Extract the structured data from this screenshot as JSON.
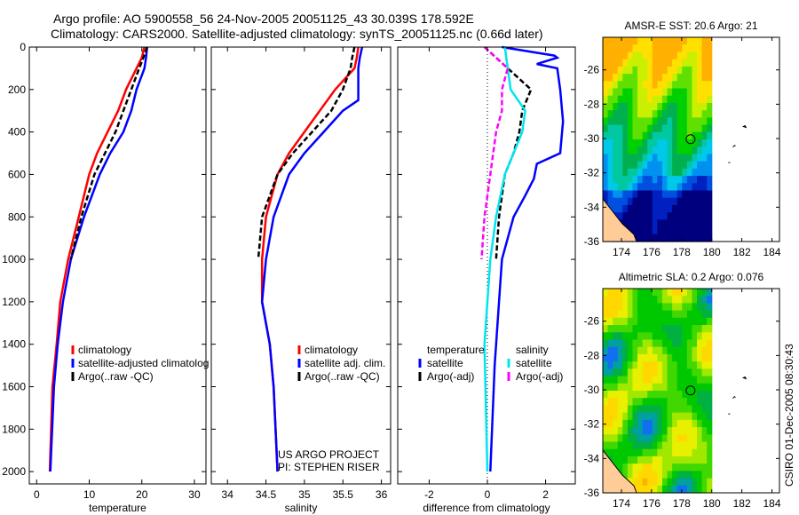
{
  "header": {
    "title_line1": "Argo profile: AO 5900558_56 24-Nov-2005 20051125_43 30.039S 178.592E",
    "title_line2": "Climatology: CARS2000. Satellite-adjusted climatology: synTS_20051125.nc (0.66d later)"
  },
  "side_stamp": "CSIRO 01-Dec-2005 08:30:43",
  "credits": {
    "line1": "US ARGO PROJECT",
    "line2": "PI: STEPHEN RISER"
  },
  "colors": {
    "climatology": "#ff0000",
    "satellite": "#0000ff",
    "argo": "#000000",
    "sal_satellite": "#00e5ee",
    "sal_argo": "#ff00ff"
  },
  "chart_data": [
    {
      "type": "line",
      "id": "temperature",
      "xlabel": "temperature",
      "ylabel": "",
      "xlim": [
        -1.4,
        32.2
      ],
      "ylim": [
        2058,
        0
      ],
      "xticks": [
        0,
        10,
        20,
        30
      ],
      "xtick_labels": [
        "0",
        "10",
        "20",
        "30"
      ],
      "yticks": [
        0,
        200,
        400,
        600,
        800,
        1000,
        1200,
        1400,
        1600,
        1800,
        2000
      ],
      "ytick_labels": [
        "0",
        "200",
        "400",
        "600",
        "800",
        "1000",
        "1200",
        "1400",
        "1600",
        "1800",
        "2000"
      ],
      "legend": [
        "climatology",
        "satellite-adjusted climatolog",
        "Argo(..raw -QC)"
      ],
      "legend_position": "lower-right",
      "series": [
        {
          "name": "climatology",
          "color": "#ff0000",
          "depth": [
            0,
            50,
            100,
            200,
            300,
            400,
            500,
            600,
            800,
            1000,
            1200,
            1400,
            1600,
            2000
          ],
          "values": [
            20.5,
            20,
            19,
            17,
            15.5,
            13.5,
            11.5,
            10,
            8,
            6,
            4.5,
            3.8,
            3,
            2.5
          ]
        },
        {
          "name": "satellite-adjusted climatology",
          "color": "#0000ff",
          "depth": [
            0,
            50,
            100,
            200,
            300,
            400,
            500,
            600,
            800,
            1000,
            1200,
            1400,
            1600,
            2000
          ],
          "values": [
            21,
            20.8,
            20.5,
            19,
            18,
            16.5,
            14,
            12,
            9,
            6.5,
            5,
            4,
            3.3,
            2.6
          ]
        },
        {
          "name": "Argo(..raw -QC)",
          "color": "#000000",
          "dashed": true,
          "depth": [
            0,
            50,
            100,
            200,
            300,
            400,
            500,
            600,
            800,
            1000
          ],
          "values": [
            21,
            20.3,
            19.5,
            18,
            16.5,
            15,
            13,
            11,
            8.5,
            6.5
          ]
        }
      ]
    },
    {
      "type": "line",
      "id": "salinity",
      "xlabel": "salinity",
      "xlim": [
        33.79,
        36.12
      ],
      "ylim": [
        2058,
        0
      ],
      "xticks": [
        34,
        34.5,
        35,
        35.5,
        36
      ],
      "xtick_labels": [
        "34",
        "34.5",
        "35",
        "35.5",
        "36"
      ],
      "legend": [
        "climatology",
        "satellite adj. clim.",
        "Argo(..raw -QC)"
      ],
      "legend_position": "lower-right",
      "series": [
        {
          "name": "climatology",
          "color": "#ff0000",
          "depth": [
            0,
            50,
            100,
            200,
            300,
            400,
            500,
            600,
            800,
            1000,
            1200,
            1400,
            1600,
            2000
          ],
          "values": [
            35.7,
            35.68,
            35.65,
            35.4,
            35.2,
            35.0,
            34.8,
            34.65,
            34.5,
            34.45,
            34.45,
            34.55,
            34.6,
            34.65
          ]
        },
        {
          "name": "satellite adj. clim.",
          "color": "#0000ff",
          "depth": [
            0,
            50,
            100,
            200,
            250,
            300,
            400,
            500,
            600,
            800,
            1000,
            1200,
            1400,
            1600,
            2000
          ],
          "values": [
            35.75,
            35.72,
            35.7,
            35.7,
            35.7,
            35.5,
            35.25,
            35.0,
            34.8,
            34.6,
            34.5,
            34.45,
            34.55,
            34.6,
            34.65
          ]
        },
        {
          "name": "Argo(..raw -QC)",
          "color": "#000000",
          "dashed": true,
          "depth": [
            0,
            50,
            100,
            200,
            300,
            400,
            500,
            600,
            800,
            1000
          ],
          "values": [
            35.65,
            35.62,
            35.6,
            35.5,
            35.35,
            35.1,
            34.85,
            34.65,
            34.45,
            34.4
          ]
        }
      ]
    },
    {
      "type": "line",
      "id": "difference",
      "xlabel": "difference from climatology",
      "xlim": [
        -3.08,
        3.02
      ],
      "ylim": [
        2058,
        0
      ],
      "xticks": [
        -2,
        0,
        2
      ],
      "xtick_labels": [
        "-2",
        "0",
        "2"
      ],
      "legend_groups": [
        {
          "title": "temperature",
          "items": [
            "satellite",
            "Argo(-adj)"
          ]
        },
        {
          "title": "salinity",
          "items": [
            "satellite",
            "Argo(-adj)"
          ]
        }
      ],
      "legend_position": "lower",
      "series": [
        {
          "name": "temperature satellite",
          "color": "#0000ff",
          "depth": [
            0,
            40,
            50,
            80,
            100,
            200,
            350,
            500,
            550,
            620,
            700,
            800,
            1000,
            1200,
            1500,
            2000
          ],
          "values": [
            0.5,
            2.3,
            2.4,
            1.7,
            2.4,
            2.5,
            2.6,
            2.5,
            1.7,
            1.6,
            1.3,
            0.9,
            0.5,
            0.4,
            0.25,
            0.1
          ]
        },
        {
          "name": "temperature Argo(-adj)",
          "color": "#000000",
          "dashed": true,
          "depth": [
            0,
            100,
            200,
            300,
            400,
            500,
            600,
            800,
            1000
          ],
          "values": [
            -0.1,
            0.7,
            1.5,
            1.2,
            1.1,
            0.9,
            0.6,
            0.4,
            0.3
          ]
        },
        {
          "name": "salinity satellite",
          "color": "#00e5ee",
          "depth": [
            0,
            100,
            200,
            300,
            400,
            500,
            600,
            800,
            1000,
            1400,
            2000
          ],
          "values": [
            0.6,
            0.7,
            0.8,
            1.3,
            1.2,
            0.9,
            0.6,
            0.3,
            0.1,
            -0.1,
            0.0
          ]
        },
        {
          "name": "salinity Argo(-adj)",
          "color": "#ff00ff",
          "dashed": true,
          "depth": [
            0,
            100,
            200,
            300,
            400,
            600,
            800,
            1000
          ],
          "values": [
            -0.1,
            0.7,
            0.5,
            0.5,
            0.3,
            0.1,
            -0.1,
            -0.2
          ]
        }
      ]
    },
    {
      "type": "heatmap",
      "id": "sst_map",
      "title": "AMSR-E SST: 20.6 Argo: 21",
      "xlim": [
        172.76,
        184.5
      ],
      "ylim": [
        -36,
        -24.1
      ],
      "xticks": [
        174,
        176,
        178,
        180,
        182,
        184
      ],
      "xtick_labels": [
        "174",
        "176",
        "178",
        "180",
        "182",
        "184"
      ],
      "yticks": [
        -26,
        -28,
        -30,
        -32,
        -34,
        -36
      ],
      "ytick_labels": [
        "-26",
        "-28",
        "-30",
        "-32",
        "-34",
        "-36"
      ],
      "float_position": {
        "lon": 178.592,
        "lat": -30.039
      }
    },
    {
      "type": "heatmap",
      "id": "sla_map",
      "title": "Altimetric SLA: 0.2 Argo: 0.076",
      "xlim": [
        172.76,
        184.5
      ],
      "ylim": [
        -36,
        -24.1
      ],
      "xticks": [
        174,
        176,
        178,
        180,
        182,
        184
      ],
      "xtick_labels": [
        "174",
        "176",
        "178",
        "180",
        "182",
        "184"
      ],
      "yticks": [
        -26,
        -28,
        -30,
        -32,
        -34,
        -36
      ],
      "ytick_labels": [
        "-26",
        "-28",
        "-30",
        "-32",
        "-34",
        "-36"
      ],
      "float_position": {
        "lon": 178.592,
        "lat": -30.039
      }
    }
  ]
}
